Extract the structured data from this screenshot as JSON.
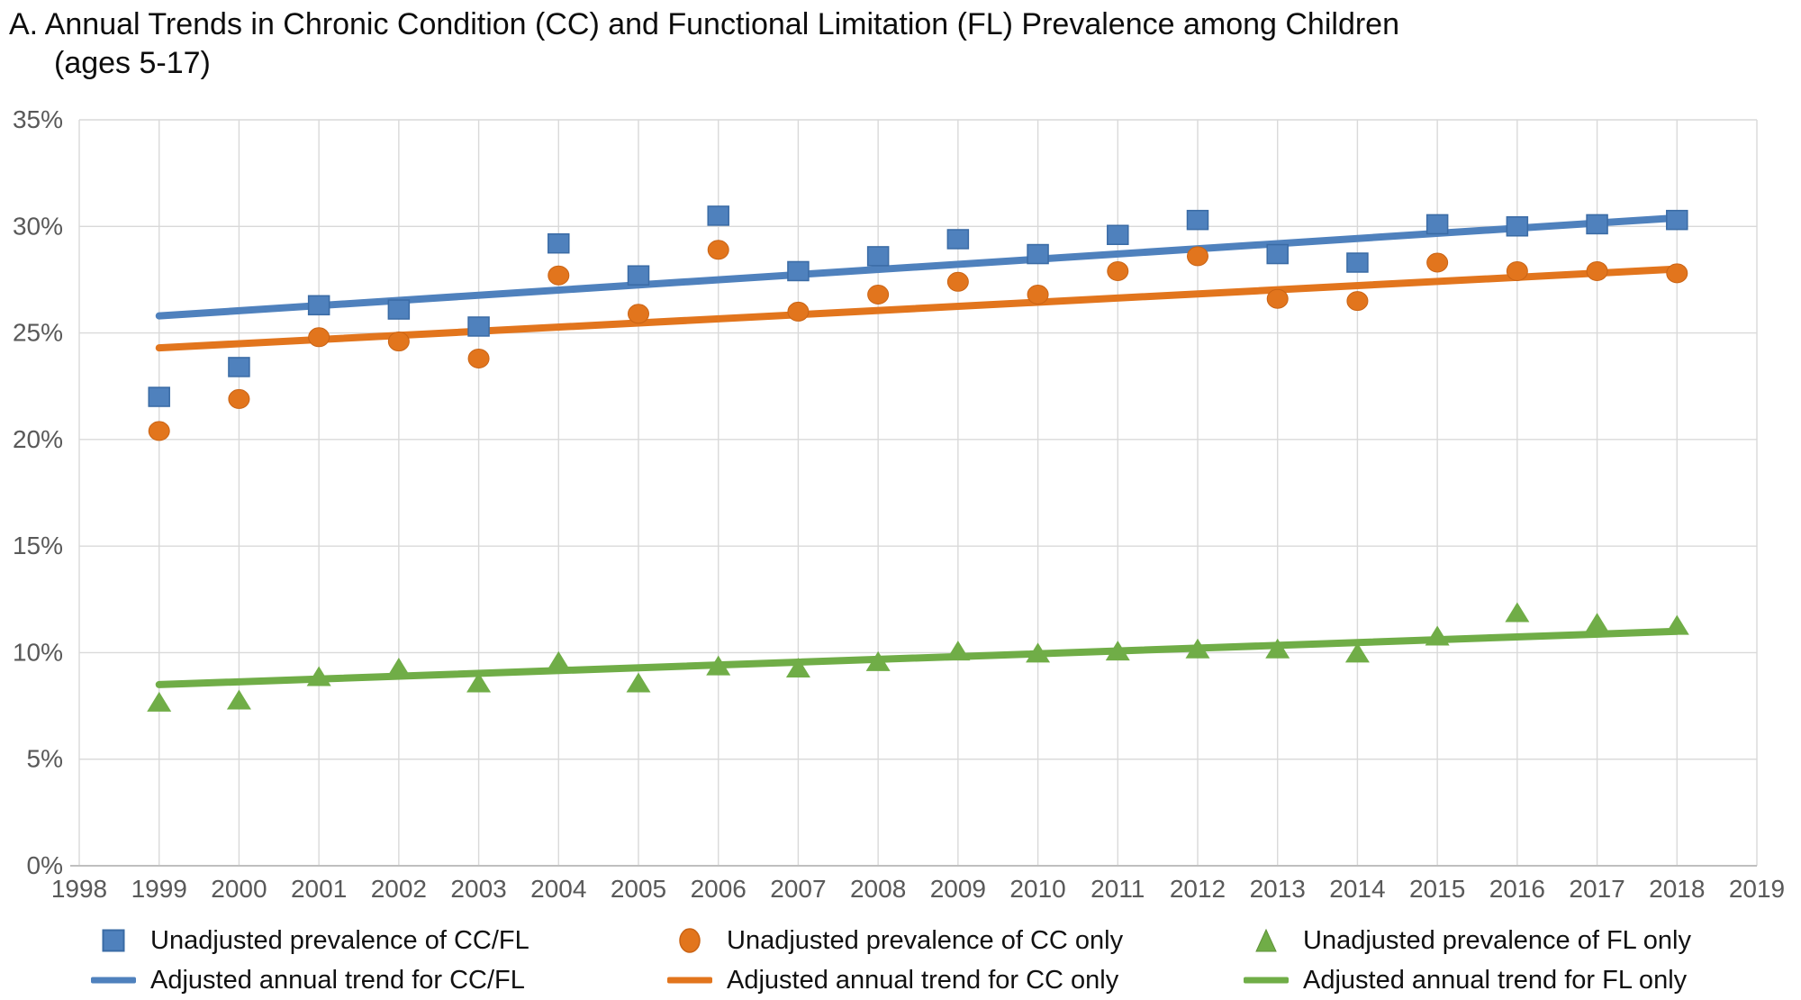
{
  "title": {
    "line1": "A. Annual Trends in Chronic Condition (CC) and Functional Limitation (FL) Prevalence among Children",
    "line2": "(ages 5-17)"
  },
  "colors": {
    "cc_fl_blue": "#4F81BD",
    "cc_fl_blue_border": "#3A6BA5",
    "cc_orange": "#E2751D",
    "cc_orange_border": "#C96315",
    "fl_green": "#70AD47",
    "fl_green_border": "#5E9138",
    "gridline": "#D9D9D9",
    "axis_line": "#BFBFBF",
    "tick_label": "#595959",
    "title_text": "#0d0d0d"
  },
  "chart_data": {
    "type": "scatter",
    "title": "A. Annual Trends in Chronic Condition (CC) and Functional Limitation (FL) Prevalence among Children (ages 5-17)",
    "xlabel": "",
    "ylabel": "",
    "xlim": [
      1998,
      2019
    ],
    "ylim": [
      0,
      35
    ],
    "grid": true,
    "legend_position": "bottom",
    "xtick_labels": [
      "1998",
      "1999",
      "2000",
      "2001",
      "2002",
      "2003",
      "2004",
      "2005",
      "2006",
      "2007",
      "2008",
      "2009",
      "2010",
      "2011",
      "2012",
      "2013",
      "2014",
      "2015",
      "2016",
      "2017",
      "2018",
      "2019"
    ],
    "ytick_labels": [
      "0%",
      "5%",
      "10%",
      "15%",
      "20%",
      "25%",
      "30%",
      "35%"
    ],
    "x": [
      1999,
      2000,
      2001,
      2002,
      2003,
      2004,
      2005,
      2006,
      2007,
      2008,
      2009,
      2010,
      2011,
      2012,
      2013,
      2014,
      2015,
      2016,
      2017,
      2018
    ],
    "series": [
      {
        "name": "Unadjusted prevalence of CC/FL",
        "kind": "scatter",
        "marker": "square",
        "color": "#4F81BD",
        "values": [
          22.0,
          23.4,
          26.3,
          26.1,
          25.3,
          29.2,
          27.7,
          30.5,
          27.9,
          28.6,
          29.4,
          28.7,
          29.6,
          30.3,
          28.7,
          28.3,
          30.1,
          30.0,
          30.1,
          30.3
        ]
      },
      {
        "name": "Unadjusted prevalence of CC only",
        "kind": "scatter",
        "marker": "circle",
        "color": "#E2751D",
        "values": [
          20.4,
          21.9,
          24.8,
          24.6,
          23.8,
          27.7,
          25.9,
          28.9,
          26.0,
          26.8,
          27.4,
          26.8,
          27.9,
          28.6,
          26.6,
          26.5,
          28.3,
          27.9,
          27.9,
          27.8
        ]
      },
      {
        "name": "Unadjusted prevalence of FL only",
        "kind": "scatter",
        "marker": "triangle",
        "color": "#70AD47",
        "values": [
          7.7,
          7.8,
          8.9,
          9.3,
          8.6,
          9.6,
          8.6,
          9.4,
          9.3,
          9.6,
          10.1,
          10.0,
          10.1,
          10.2,
          10.2,
          10.0,
          10.8,
          11.9,
          11.4,
          11.3
        ]
      },
      {
        "name": "Adjusted annual trend for CC/FL",
        "kind": "line",
        "color": "#4F81BD",
        "x": [
          1999,
          2018
        ],
        "values": [
          25.8,
          30.4
        ]
      },
      {
        "name": "Adjusted annual trend for CC only",
        "kind": "line",
        "color": "#E2751D",
        "x": [
          1999,
          2018
        ],
        "values": [
          24.3,
          28.0
        ]
      },
      {
        "name": "Adjusted annual trend for FL only",
        "kind": "line",
        "color": "#70AD47",
        "x": [
          1999,
          2018
        ],
        "values": [
          8.5,
          11.0
        ]
      }
    ]
  }
}
